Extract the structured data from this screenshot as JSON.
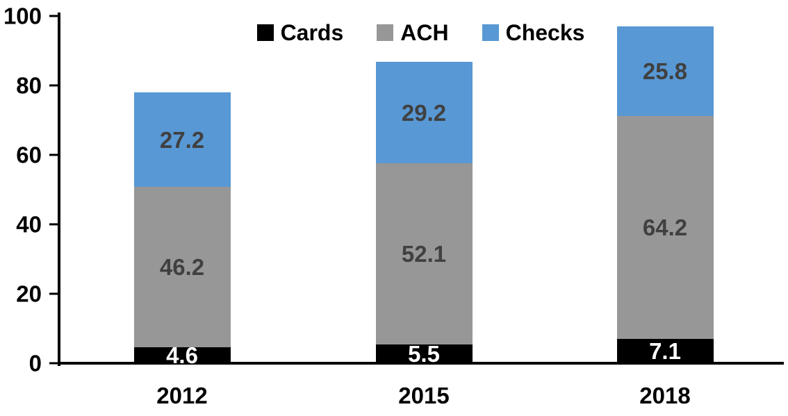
{
  "chart_data": {
    "type": "bar",
    "stacked": true,
    "title": "",
    "xlabel": "",
    "ylabel": "",
    "categories": [
      "2012",
      "2015",
      "2018"
    ],
    "series": [
      {
        "name": "Cards",
        "values": [
          4.6,
          5.5,
          7.1
        ],
        "color": "#000000",
        "label_color": "#ffffff"
      },
      {
        "name": "ACH",
        "values": [
          46.2,
          52.1,
          64.2
        ],
        "color": "#979797",
        "label_color": "#404040"
      },
      {
        "name": "Checks",
        "values": [
          27.2,
          29.2,
          25.8
        ],
        "color": "#5898d4",
        "label_color": "#404040"
      }
    ],
    "totals": [
      78.0,
      86.8,
      97.1
    ],
    "ylim": [
      0,
      100
    ],
    "yticks": [
      0,
      20,
      40,
      60,
      80,
      100
    ],
    "grid": false,
    "legend_position": "top-center",
    "axis_color": "#000000",
    "background_color": "#ffffff",
    "value_format": "0.0"
  }
}
